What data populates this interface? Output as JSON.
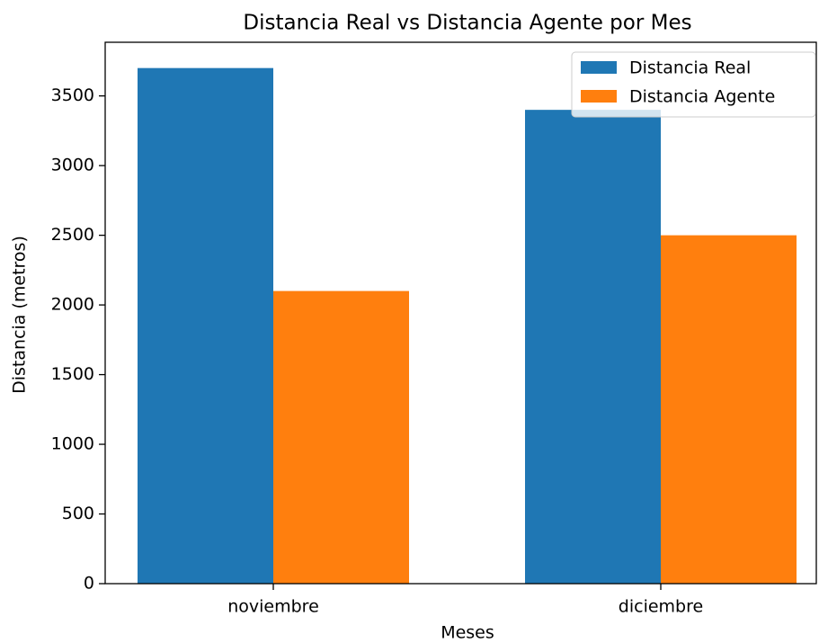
{
  "chart_data": {
    "type": "bar",
    "title": "Distancia Real vs Distancia Agente por Mes",
    "xlabel": "Meses",
    "ylabel": "Distancia (metros)",
    "categories": [
      "noviembre",
      "diciembre"
    ],
    "series": [
      {
        "name": "Distancia Real",
        "color": "#1f77b4",
        "values": [
          3700,
          3400
        ]
      },
      {
        "name": "Distancia Agente",
        "color": "#ff7f0e",
        "values": [
          2100,
          2500
        ]
      }
    ],
    "ylim": [
      0,
      3885
    ],
    "yticks": [
      0,
      500,
      1000,
      1500,
      2000,
      2500,
      3000,
      3500
    ],
    "legend": "upper right"
  }
}
